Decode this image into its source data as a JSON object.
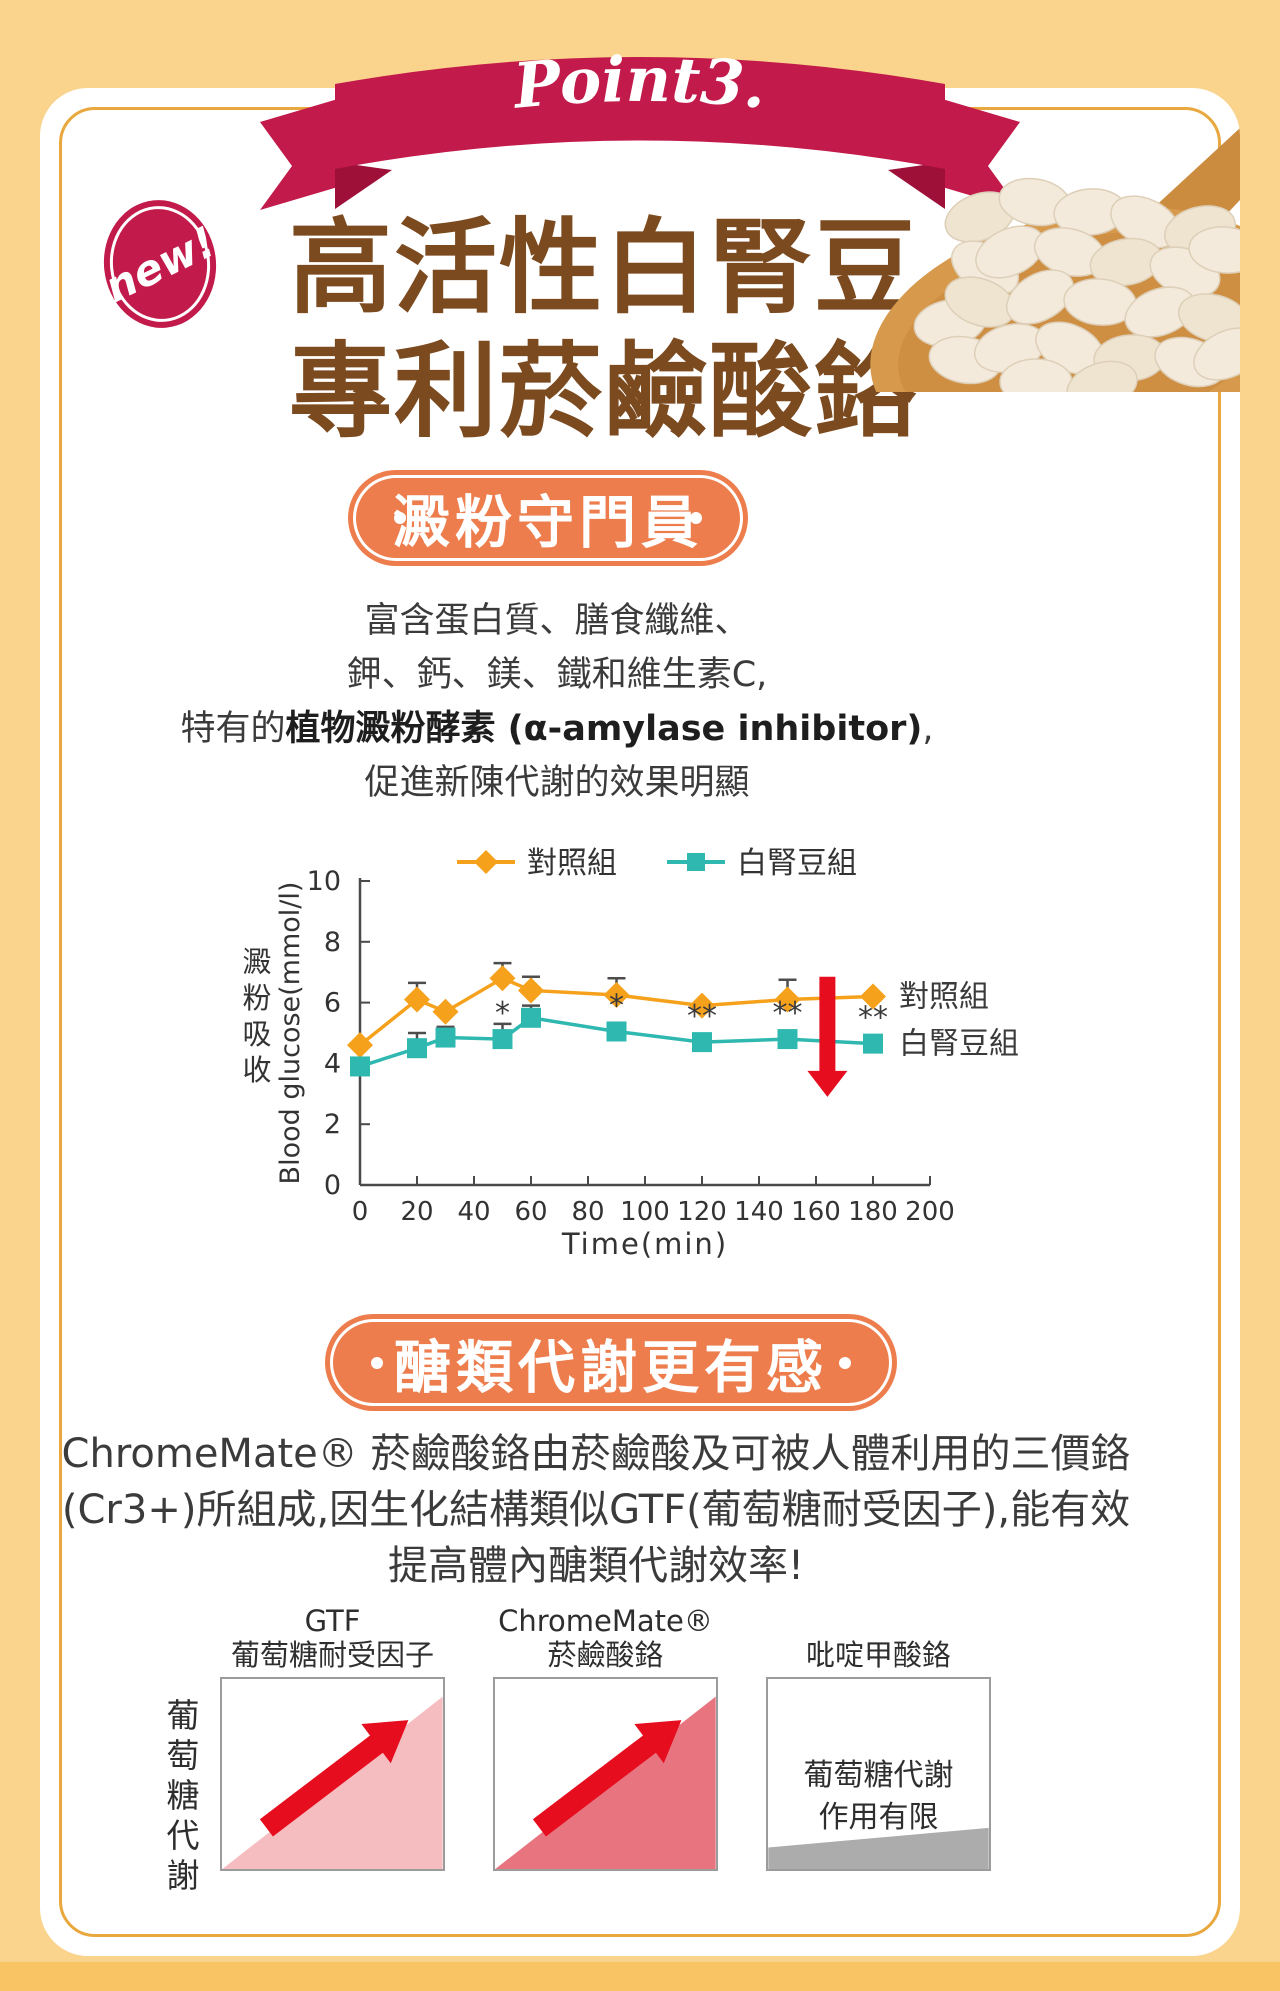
{
  "page": {
    "ribbon_label": "Point3.",
    "new_badge": "new!",
    "heading_line1": "高活性白腎豆",
    "heading_line2": "專利菸鹼酸鉻"
  },
  "section1": {
    "pill_label": "澱粉守門員",
    "body_line1": "富含蛋白質、膳食纖維、",
    "body_line2": "鉀、鈣、鎂、鐵和維生素C,",
    "body_line3_prefix": "特有的",
    "body_line3_bold": "植物澱粉酵素 (α-amylase inhibitor)",
    "body_line3_suffix": ",",
    "body_line4": "促進新陳代謝的效果明顯"
  },
  "chart_data": {
    "type": "line",
    "x": [
      0,
      20,
      30,
      50,
      60,
      90,
      120,
      150,
      180
    ],
    "xlabel": "Time(min)",
    "ylabel": "Blood glucose(mmol/l)",
    "ylabel_cjk": "澱粉吸收",
    "xlim": [
      0,
      200
    ],
    "ylim": [
      0,
      10
    ],
    "xticks": [
      0,
      20,
      40,
      60,
      80,
      100,
      120,
      140,
      160,
      180,
      200
    ],
    "yticks": [
      0,
      2,
      4,
      6,
      8,
      10
    ],
    "legend_position": "top",
    "grid": false,
    "series": [
      {
        "name": "對照組",
        "color": "#F5A11C",
        "marker": "diamond",
        "values": [
          4.6,
          6.1,
          5.7,
          6.8,
          6.4,
          6.25,
          5.9,
          6.1,
          6.2
        ],
        "err": [
          0,
          0.55,
          0,
          0.5,
          0.45,
          0.55,
          0,
          0.65,
          0
        ]
      },
      {
        "name": "白腎豆組",
        "color": "#2FB8B0",
        "marker": "square",
        "values": [
          3.9,
          4.5,
          4.85,
          4.8,
          5.5,
          5.05,
          4.7,
          4.8,
          4.65
        ],
        "err": [
          0,
          0.5,
          0.35,
          0.5,
          0.4,
          0,
          0,
          0,
          0
        ],
        "annotations": [
          "",
          "",
          "",
          "*",
          "",
          "*",
          "**",
          "**",
          "**"
        ]
      }
    ],
    "end_labels": [
      "對照組",
      "白腎豆組"
    ],
    "arrow": {
      "x": 164,
      "from": 6.85,
      "to": 2.9,
      "color": "#E60D1F"
    }
  },
  "section2": {
    "pill_label": "醣類代謝更有感",
    "body_line1": "ChromeMate® 菸鹼酸鉻由菸鹼酸及可被人體利用的三價鉻",
    "body_line2": "(Cr3+)所組成,因生化結構類似GTF(葡萄糖耐受因子),能有效",
    "body_line3": "提高體內醣類代謝效率!"
  },
  "diagrams": {
    "axis_label": "葡萄糖代謝",
    "items": [
      {
        "title1": "GTF",
        "title2": "葡萄糖耐受因子",
        "fill": "#F6BDC1",
        "shape": "rise",
        "arrow": true
      },
      {
        "title1": "ChromeMate®",
        "title2": "菸鹼酸鉻",
        "fill": "#E7747F",
        "shape": "rise",
        "arrow": true
      },
      {
        "title1": "吡啶甲酸鉻",
        "title2": "",
        "fill": "#ACACAC",
        "shape": "flat",
        "arrow": false,
        "note1": "葡萄糖代謝",
        "note2": "作用有限"
      }
    ]
  },
  "colors": {
    "background": "#FAD38C",
    "bottom-strip": "#F9C464",
    "card-border": "#E8A83E",
    "crimson": "#C21A4A",
    "crimson-dark": "#9E1038",
    "heading-brown": "#7C4A1F",
    "pill-orange": "#ED7D4D",
    "series-orange": "#F5A11C",
    "series-teal": "#2FB8B0",
    "arrow-red": "#E60D1F",
    "text-dark": "#3A3A3A",
    "spoon-wood": "#D79A4C",
    "bean": "#F3EADB"
  }
}
